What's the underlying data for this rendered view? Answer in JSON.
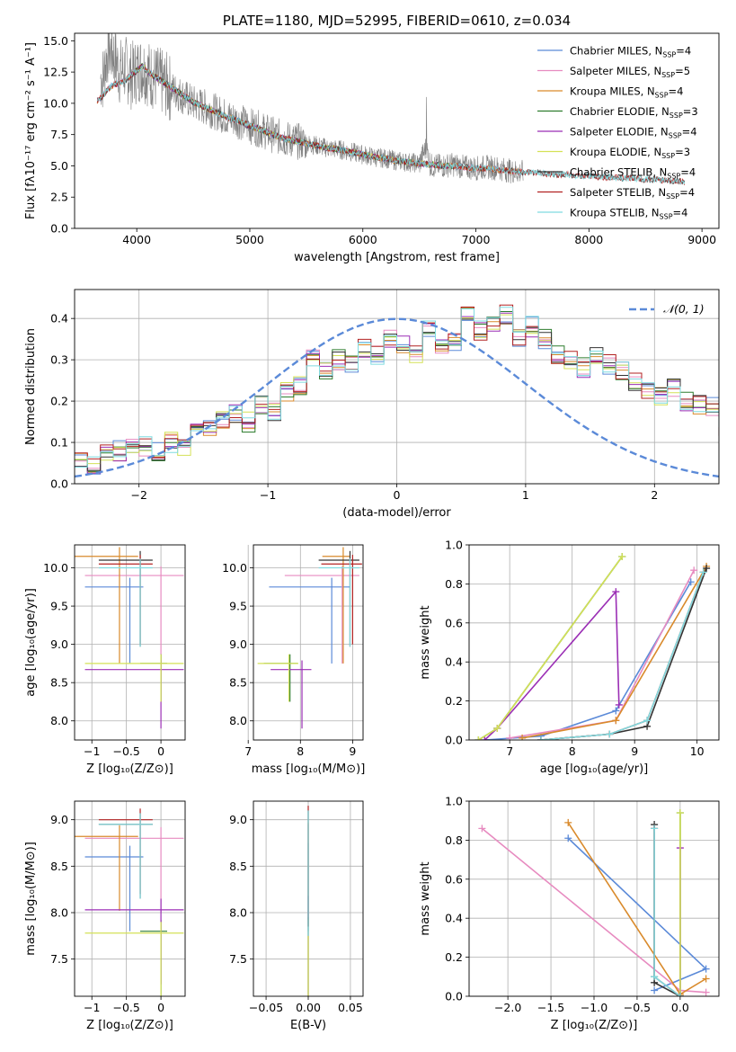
{
  "chart_data": [
    {
      "id": "spectrum",
      "type": "line",
      "title": "PLATE=1180, MJD=52995, FIBERID=0610, z=0.034",
      "xlabel": "wavelength [Angstrom, rest frame]",
      "ylabel": "Flux [fλ10⁻¹⁷ erg cm⁻² s⁻¹ A⁻¹]",
      "xlim": [
        3450,
        9150
      ],
      "ylim": [
        0,
        15.6
      ],
      "xticks": [
        4000,
        5000,
        6000,
        7000,
        8000,
        9000
      ],
      "yticks": [
        0.0,
        2.5,
        5.0,
        7.5,
        10.0,
        12.5,
        15.0
      ],
      "grid": false,
      "legend_position": "top-right",
      "data_color": "#808080",
      "data_points": [
        [
          3700,
          12
        ],
        [
          3750,
          14.5
        ],
        [
          3800,
          13.8
        ],
        [
          3850,
          12.5
        ],
        [
          3900,
          12.8
        ],
        [
          3950,
          12.2
        ],
        [
          4000,
          12.6
        ],
        [
          4050,
          12.9
        ],
        [
          4100,
          12.4
        ],
        [
          4200,
          11.8
        ],
        [
          4300,
          11.2
        ],
        [
          4400,
          10.6
        ],
        [
          4500,
          10.0
        ],
        [
          4600,
          9.7
        ],
        [
          4700,
          9.3
        ],
        [
          4800,
          8.9
        ],
        [
          4900,
          8.6
        ],
        [
          5000,
          8.2
        ],
        [
          5100,
          7.9
        ],
        [
          5200,
          7.5
        ],
        [
          5300,
          7.2
        ],
        [
          5400,
          7.0
        ],
        [
          5500,
          6.8
        ],
        [
          5600,
          6.6
        ],
        [
          5700,
          6.4
        ],
        [
          5800,
          6.3
        ],
        [
          5900,
          6.1
        ],
        [
          6000,
          5.9
        ],
        [
          6100,
          5.7
        ],
        [
          6200,
          5.6
        ],
        [
          6300,
          5.4
        ],
        [
          6400,
          5.3
        ],
        [
          6500,
          5.2
        ],
        [
          6560,
          6.5
        ],
        [
          6600,
          5.0
        ],
        [
          6700,
          5.0
        ],
        [
          6800,
          5.1
        ],
        [
          6900,
          4.9
        ],
        [
          7000,
          4.8
        ],
        [
          7100,
          4.9
        ],
        [
          7200,
          4.8
        ],
        [
          7300,
          4.6
        ],
        [
          7400,
          4.5
        ]
      ],
      "model_points": [
        [
          3650,
          10.2
        ],
        [
          3700,
          10.6
        ],
        [
          3750,
          11.2
        ],
        [
          3800,
          11.5
        ],
        [
          3850,
          11.6
        ],
        [
          3900,
          11.8
        ],
        [
          3950,
          12.3
        ],
        [
          4000,
          12.6
        ],
        [
          4050,
          13.0
        ],
        [
          4100,
          12.5
        ],
        [
          4200,
          11.9
        ],
        [
          4300,
          11.3
        ],
        [
          4400,
          10.7
        ],
        [
          4500,
          10.1
        ],
        [
          4600,
          9.7
        ],
        [
          4700,
          9.3
        ],
        [
          4800,
          8.9
        ],
        [
          4900,
          8.6
        ],
        [
          5000,
          8.2
        ],
        [
          5100,
          7.9
        ],
        [
          5200,
          7.5
        ],
        [
          5300,
          7.2
        ],
        [
          5400,
          7.0
        ],
        [
          5500,
          6.8
        ],
        [
          5600,
          6.6
        ],
        [
          5700,
          6.4
        ],
        [
          5800,
          6.3
        ],
        [
          5900,
          6.1
        ],
        [
          6000,
          5.9
        ],
        [
          6100,
          5.7
        ],
        [
          6200,
          5.6
        ],
        [
          6300,
          5.4
        ],
        [
          6400,
          5.3
        ],
        [
          6500,
          5.2
        ],
        [
          6600,
          5.1
        ],
        [
          6700,
          5.0
        ],
        [
          6800,
          5.0
        ],
        [
          6900,
          4.9
        ],
        [
          7000,
          4.8
        ],
        [
          7100,
          4.8
        ],
        [
          7200,
          4.7
        ],
        [
          7300,
          4.6
        ],
        [
          7400,
          4.5
        ],
        [
          7500,
          4.5
        ],
        [
          7600,
          4.4
        ],
        [
          7700,
          4.3
        ],
        [
          7800,
          4.3
        ],
        [
          7900,
          4.2
        ],
        [
          8000,
          4.2
        ],
        [
          8100,
          4.1
        ],
        [
          8200,
          4.1
        ],
        [
          8300,
          4.0
        ],
        [
          8400,
          4.0
        ],
        [
          8500,
          3.9
        ],
        [
          8600,
          3.9
        ],
        [
          8700,
          3.8
        ],
        [
          8800,
          3.8
        ],
        [
          8850,
          3.7
        ]
      ],
      "series": [
        {
          "name": "Chabrier MILES, N",
          "sub": "SSP",
          "suffix": "=4",
          "color": "#5b8ad8",
          "xmin": 3650,
          "xmax": 7420
        },
        {
          "name": "Salpeter MILES, N",
          "sub": "SSP",
          "suffix": "=5",
          "color": "#e78bc0",
          "xmin": 3650,
          "xmax": 7420
        },
        {
          "name": "Kroupa MILES, N",
          "sub": "SSP",
          "suffix": "=4",
          "color": "#d98a2b",
          "xmin": 3650,
          "xmax": 7420
        },
        {
          "name": "Chabrier ELODIE, N",
          "sub": "SSP",
          "suffix": "=3",
          "color": "#2f7d2f",
          "xmin": 3900,
          "xmax": 6800
        },
        {
          "name": "Salpeter ELODIE, N",
          "sub": "SSP",
          "suffix": "=4",
          "color": "#9b2fb5",
          "xmin": 3900,
          "xmax": 6800
        },
        {
          "name": "Kroupa ELODIE, N",
          "sub": "SSP",
          "suffix": "=3",
          "color": "#d4e157",
          "xmin": 3900,
          "xmax": 6800
        },
        {
          "name": "Chabrier STELIB, N",
          "sub": "SSP",
          "suffix": "=4",
          "color": "#333333",
          "xmin": 3650,
          "xmax": 8850
        },
        {
          "name": "Salpeter STELIB, N",
          "sub": "SSP",
          "suffix": "=4",
          "color": "#b22222",
          "xmin": 3650,
          "xmax": 8850
        },
        {
          "name": "Kroupa STELIB, N",
          "sub": "SSP",
          "suffix": "=4",
          "color": "#7fdbe0",
          "xmin": 3650,
          "xmax": 8850
        }
      ]
    },
    {
      "id": "residuals",
      "type": "line",
      "xlabel": "(data-model)/error",
      "ylabel": "Normed distribution",
      "xlim": [
        -2.5,
        2.5
      ],
      "ylim": [
        0,
        0.47
      ],
      "xticks": [
        -2,
        -1,
        0,
        1,
        2
      ],
      "yticks": [
        0.0,
        0.1,
        0.2,
        0.3,
        0.4
      ],
      "grid": true,
      "legend_position": "top-right",
      "legend": "𝒩(0, 1)",
      "gaussian": {
        "mu": 0,
        "sigma": 1,
        "color": "#5b8ad8"
      },
      "bin_width": 0.1,
      "bins_start": -2.5,
      "base_hist": [
        0.06,
        0.04,
        0.07,
        0.08,
        0.09,
        0.09,
        0.08,
        0.1,
        0.09,
        0.12,
        0.13,
        0.15,
        0.17,
        0.15,
        0.19,
        0.17,
        0.22,
        0.24,
        0.3,
        0.27,
        0.3,
        0.29,
        0.33,
        0.31,
        0.35,
        0.34,
        0.31,
        0.37,
        0.34,
        0.34,
        0.42,
        0.37,
        0.39,
        0.41,
        0.35,
        0.38,
        0.35,
        0.31,
        0.3,
        0.28,
        0.31,
        0.29,
        0.27,
        0.25,
        0.23,
        0.21,
        0.23,
        0.2,
        0.19,
        0.19,
        0.14,
        0.14,
        0.12,
        0.17,
        0.16,
        0.1,
        0.09,
        0.09,
        0.07,
        0.07,
        0.06,
        0.05,
        0.05,
        0.04,
        0.03,
        0.03
      ]
    },
    {
      "id": "age-vs-Z",
      "type": "scatter",
      "xlabel": "Z [log₁₀(Z/Z⊙)]",
      "ylabel": "age  [log₁₀(age/yr)]",
      "xlim": [
        -1.25,
        0.35
      ],
      "ylim": [
        7.75,
        10.3
      ],
      "xticks": [
        -1,
        -0.5,
        0
      ],
      "yticks": [
        8.0,
        8.5,
        9.0,
        9.5,
        10.0
      ],
      "grid": true
    },
    {
      "id": "age-vs-mass",
      "type": "scatter",
      "xlabel": "mass [log₁₀(M/M⊙)]",
      "xlim": [
        7.1,
        9.2
      ],
      "ylim": [
        7.75,
        10.3
      ],
      "xticks": [
        7,
        8,
        9
      ],
      "yticks": [
        8.0,
        8.5,
        9.0,
        9.5,
        10.0
      ],
      "grid": true
    },
    {
      "id": "weight-vs-age",
      "type": "line",
      "xlabel": "age  [log₁₀(age/yr)]",
      "ylabel": "mass weight",
      "xlim": [
        6.35,
        10.35
      ],
      "ylim": [
        0,
        1.0
      ],
      "xticks": [
        7,
        8,
        9,
        10
      ],
      "yticks": [
        0.0,
        0.2,
        0.4,
        0.6,
        0.8,
        1.0
      ],
      "grid": true
    },
    {
      "id": "mass-vs-Z",
      "type": "scatter",
      "xlabel": "Z [log₁₀(Z/Z⊙)]",
      "ylabel": "mass [log₁₀(M/M⊙)]",
      "xlim": [
        -1.25,
        0.35
      ],
      "ylim": [
        7.1,
        9.2
      ],
      "xticks": [
        -1,
        -0.5,
        0
      ],
      "yticks": [
        7.5,
        8.0,
        8.5,
        9.0
      ],
      "grid": true
    },
    {
      "id": "mass-vs-ebv",
      "type": "scatter",
      "xlabel": "E(B-V)",
      "xlim": [
        -0.065,
        0.065
      ],
      "ylim": [
        7.1,
        9.2
      ],
      "xticks": [
        -0.05,
        0.0,
        0.05
      ],
      "yticks": [
        7.5,
        8.0,
        8.5,
        9.0
      ],
      "grid": true
    },
    {
      "id": "weight-vs-Z",
      "type": "line",
      "xlabel": "Z [log₁₀(Z/Z⊙)]",
      "ylabel": "mass weight",
      "xlim": [
        -2.45,
        0.45
      ],
      "ylim": [
        0,
        1.0
      ],
      "xticks": [
        -2.0,
        -1.5,
        -1.0,
        -0.5,
        0.0
      ],
      "yticks": [
        0.0,
        0.2,
        0.4,
        0.6,
        0.8,
        1.0
      ],
      "grid": true
    }
  ],
  "fits": [
    {
      "color": "#5b8ad8",
      "Z": -0.45,
      "Zerr": 0.65,
      "age": 9.75,
      "ageLow": 8.75,
      "mass": 8.6,
      "massErr": 1.2,
      "ebv": 0.0,
      "ageW": [
        [
          6.6,
          0.0
        ],
        [
          7.5,
          0.02
        ],
        [
          8.7,
          0.15
        ],
        [
          9.9,
          0.81
        ]
      ],
      "zW": [
        [
          -0.3,
          0.03
        ],
        [
          0.3,
          0.14
        ],
        [
          -1.3,
          0.81
        ]
      ]
    },
    {
      "color": "#e78bc0",
      "Z": 0.0,
      "Zerr": 1.1,
      "age": 9.9,
      "ageLow": 8.75,
      "mass": 8.8,
      "massErr": 1.1,
      "ebv": 0.0,
      "ageW": [
        [
          7.0,
          0.01
        ],
        [
          8.7,
          0.1
        ],
        [
          9.95,
          0.87
        ]
      ],
      "zW": [
        [
          -2.3,
          0.86
        ],
        [
          0.0,
          0.03
        ],
        [
          0.3,
          0.02
        ]
      ]
    },
    {
      "color": "#d98a2b",
      "Z": -0.6,
      "Zerr": 0.9,
      "age": 10.15,
      "ageLow": 8.75,
      "mass": 8.82,
      "massErr": 0.4,
      "ebv": 0.0,
      "ageW": [
        [
          7.2,
          0.01
        ],
        [
          8.7,
          0.1
        ],
        [
          10.15,
          0.89
        ]
      ],
      "zW": [
        [
          -1.3,
          0.89
        ],
        [
          0.0,
          0.01
        ],
        [
          0.3,
          0.09
        ]
      ]
    },
    {
      "color": "#2f7d2f",
      "Z": 0.0,
      "Zerr": 0.3,
      "age": 8.75,
      "ageLow": 8.25,
      "mass": 7.8,
      "massErr": 0.5,
      "ebv": 0.0,
      "ageW": [
        [
          6.5,
          0.0
        ],
        [
          6.8,
          0.06
        ],
        [
          8.8,
          0.94
        ]
      ],
      "zW": [
        [
          0.0,
          0.0
        ],
        [
          0.0,
          0.94
        ]
      ]
    },
    {
      "color": "#9b2fb5",
      "Z": 0.0,
      "Zerr": 1.1,
      "age": 8.67,
      "ageLow": 7.9,
      "mass": 8.03,
      "massErr": 0.6,
      "ebv": 0.0,
      "ageW": [
        [
          6.6,
          0.0
        ],
        [
          6.8,
          0.06
        ],
        [
          8.7,
          0.76
        ],
        [
          8.75,
          0.18
        ]
      ],
      "zW": [
        [
          0.0,
          0.0
        ],
        [
          0.0,
          0.76
        ]
      ]
    },
    {
      "color": "#d4e157",
      "Z": 0.0,
      "Zerr": 1.1,
      "age": 8.75,
      "ageLow": 8.25,
      "mass": 7.78,
      "massErr": 0.6,
      "ebv": 0.0,
      "ageW": [
        [
          6.5,
          0.0
        ],
        [
          6.8,
          0.06
        ],
        [
          8.8,
          0.94
        ]
      ],
      "zW": [
        [
          0.0,
          0.0
        ],
        [
          0.0,
          0.94
        ]
      ]
    },
    {
      "color": "#333333",
      "Z": -0.3,
      "Zerr": 0.6,
      "age": 10.1,
      "ageLow": 8.97,
      "mass": 8.95,
      "massErr": 0.6,
      "ebv": 0.0,
      "ageW": [
        [
          7.5,
          0.0
        ],
        [
          8.6,
          0.03
        ],
        [
          9.2,
          0.07
        ],
        [
          10.15,
          0.88
        ]
      ],
      "zW": [
        [
          -0.3,
          0.88
        ],
        [
          -0.3,
          0.07
        ],
        [
          0.0,
          0.0
        ]
      ]
    },
    {
      "color": "#b22222",
      "Z": -0.3,
      "Zerr": 0.6,
      "age": 10.05,
      "ageLow": 9.0,
      "mass": 9.0,
      "massErr": 0.6,
      "ebv": 0.0,
      "ageW": [
        [
          7.5,
          0.0
        ],
        [
          8.6,
          0.03
        ],
        [
          9.2,
          0.1
        ],
        [
          10.1,
          0.86
        ]
      ],
      "zW": [
        [
          -0.3,
          0.86
        ],
        [
          -0.3,
          0.1
        ],
        [
          0.0,
          0.0
        ]
      ]
    },
    {
      "color": "#7fdbe0",
      "Z": -0.3,
      "Zerr": 0.6,
      "age": 10.0,
      "ageLow": 8.97,
      "mass": 8.95,
      "massErr": 0.6,
      "ebv": 0.0,
      "ageW": [
        [
          7.5,
          0.0
        ],
        [
          8.6,
          0.03
        ],
        [
          9.2,
          0.1
        ],
        [
          10.1,
          0.86
        ]
      ],
      "zW": [
        [
          -0.3,
          0.86
        ],
        [
          -0.3,
          0.1
        ],
        [
          0.0,
          0.0
        ]
      ]
    }
  ]
}
